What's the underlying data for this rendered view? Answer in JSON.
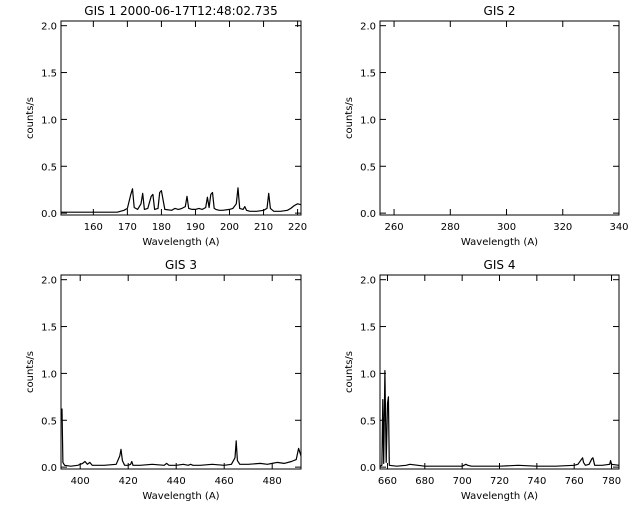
{
  "chart_data": [
    {
      "type": "line",
      "title": "GIS 1 2000-06-17T12:48:02.735",
      "xlabel": "Wavelength (A)",
      "ylabel": "counts/s",
      "xlim": [
        150.5,
        221
      ],
      "ylim": [
        -0.02,
        2.05
      ],
      "xticks": [
        160,
        170,
        180,
        190,
        200,
        210,
        220
      ],
      "yticks": [
        0.0,
        0.5,
        1.0,
        1.5,
        2.0
      ],
      "ytick_labels": [
        "0.0",
        "0.5",
        "1.0",
        "1.5",
        "2.0"
      ],
      "grid": false,
      "series": [
        {
          "x": [
            150.5,
            160,
            167,
            169,
            170,
            171,
            171.5,
            172,
            173,
            174,
            174.5,
            175,
            176,
            177,
            177.5,
            178,
            179,
            179.5,
            180,
            181,
            183,
            184,
            185,
            186,
            187,
            187.5,
            188,
            189,
            190,
            191,
            192,
            193,
            193.5,
            194,
            194.5,
            195,
            195.5,
            196,
            197,
            198,
            200,
            201,
            202,
            202.5,
            203,
            204,
            204.5,
            205,
            206,
            208,
            210,
            211,
            211.5,
            212,
            213,
            215,
            217,
            218,
            219,
            220,
            221
          ],
          "y": [
            0.01,
            0.01,
            0.01,
            0.03,
            0.05,
            0.2,
            0.26,
            0.06,
            0.04,
            0.1,
            0.21,
            0.04,
            0.05,
            0.18,
            0.2,
            0.04,
            0.05,
            0.22,
            0.24,
            0.04,
            0.03,
            0.05,
            0.04,
            0.05,
            0.07,
            0.18,
            0.05,
            0.04,
            0.04,
            0.05,
            0.04,
            0.06,
            0.17,
            0.06,
            0.2,
            0.22,
            0.05,
            0.04,
            0.03,
            0.03,
            0.04,
            0.05,
            0.1,
            0.27,
            0.05,
            0.04,
            0.07,
            0.03,
            0.02,
            0.02,
            0.03,
            0.05,
            0.21,
            0.05,
            0.02,
            0.02,
            0.03,
            0.05,
            0.08,
            0.1,
            0.09
          ]
        }
      ]
    },
    {
      "type": "line",
      "title": "GIS 2",
      "xlabel": "Wavelength (A)",
      "ylabel": "counts/s",
      "xlim": [
        255,
        340
      ],
      "ylim": [
        -0.02,
        2.05
      ],
      "xticks": [
        260,
        280,
        300,
        320,
        340
      ],
      "yticks": [
        0.0,
        0.5,
        1.0,
        1.5,
        2.0
      ],
      "ytick_labels": [
        "0.0",
        "0.5",
        "1.0",
        "1.5",
        "2.0"
      ],
      "grid": false,
      "series": []
    },
    {
      "type": "line",
      "title": "GIS 3",
      "xlabel": "Wavelength (A)",
      "ylabel": "counts/s",
      "xlim": [
        392,
        492
      ],
      "ylim": [
        -0.02,
        2.05
      ],
      "xticks": [
        400,
        420,
        440,
        460,
        480
      ],
      "yticks": [
        0.0,
        0.5,
        1.0,
        1.5,
        2.0
      ],
      "ytick_labels": [
        "0.0",
        "0.5",
        "1.0",
        "1.5",
        "2.0"
      ],
      "grid": false,
      "series": [
        {
          "x": [
            392,
            392.4,
            392.8,
            393.5,
            396,
            399,
            401,
            402,
            403,
            404,
            405,
            410,
            415,
            416.5,
            417,
            417.6,
            418.5,
            420,
            421,
            421.5,
            422,
            425,
            430,
            435,
            436,
            437,
            440,
            443,
            445,
            446,
            447,
            450,
            455,
            460,
            463,
            464.5,
            465,
            465.5,
            466.5,
            470,
            475,
            478,
            480,
            482,
            485,
            488,
            490,
            491,
            492
          ],
          "y": [
            0.6,
            0.62,
            0.05,
            0.02,
            0.01,
            0.02,
            0.04,
            0.06,
            0.03,
            0.05,
            0.02,
            0.02,
            0.03,
            0.12,
            0.19,
            0.07,
            0.02,
            0.02,
            0.03,
            0.06,
            0.02,
            0.02,
            0.03,
            0.02,
            0.04,
            0.02,
            0.02,
            0.03,
            0.02,
            0.03,
            0.02,
            0.02,
            0.03,
            0.02,
            0.03,
            0.1,
            0.28,
            0.07,
            0.03,
            0.03,
            0.04,
            0.03,
            0.04,
            0.05,
            0.04,
            0.06,
            0.08,
            0.2,
            0.12
          ]
        }
      ]
    },
    {
      "type": "line",
      "title": "GIS 4",
      "xlabel": "Wavelength (A)",
      "ylabel": "counts/s",
      "xlim": [
        656,
        784
      ],
      "ylim": [
        -0.02,
        2.05
      ],
      "xticks": [
        660,
        680,
        700,
        720,
        740,
        760,
        780
      ],
      "yticks": [
        0.0,
        0.5,
        1.0,
        1.5,
        2.0
      ],
      "ytick_labels": [
        "0.0",
        "0.5",
        "1.0",
        "1.5",
        "2.0"
      ],
      "grid": false,
      "series": [
        {
          "x": [
            656,
            657,
            657.5,
            658,
            658.6,
            659.3,
            660,
            660.5,
            661,
            665,
            670,
            672,
            680,
            690,
            700,
            702,
            703,
            705,
            710,
            720,
            730,
            740,
            750,
            760,
            762,
            764.5,
            765,
            766,
            768,
            769.5,
            770,
            771,
            775,
            779,
            779.5,
            780,
            784
          ],
          "y": [
            0.01,
            0.02,
            0.72,
            0.04,
            1.03,
            0.05,
            0.68,
            0.75,
            0.02,
            0.01,
            0.02,
            0.03,
            0.01,
            0.01,
            0.01,
            0.03,
            0.02,
            0.01,
            0.01,
            0.01,
            0.02,
            0.01,
            0.01,
            0.02,
            0.03,
            0.1,
            0.05,
            0.02,
            0.03,
            0.09,
            0.1,
            0.02,
            0.02,
            0.03,
            0.07,
            0.03,
            0.02
          ]
        }
      ]
    }
  ]
}
